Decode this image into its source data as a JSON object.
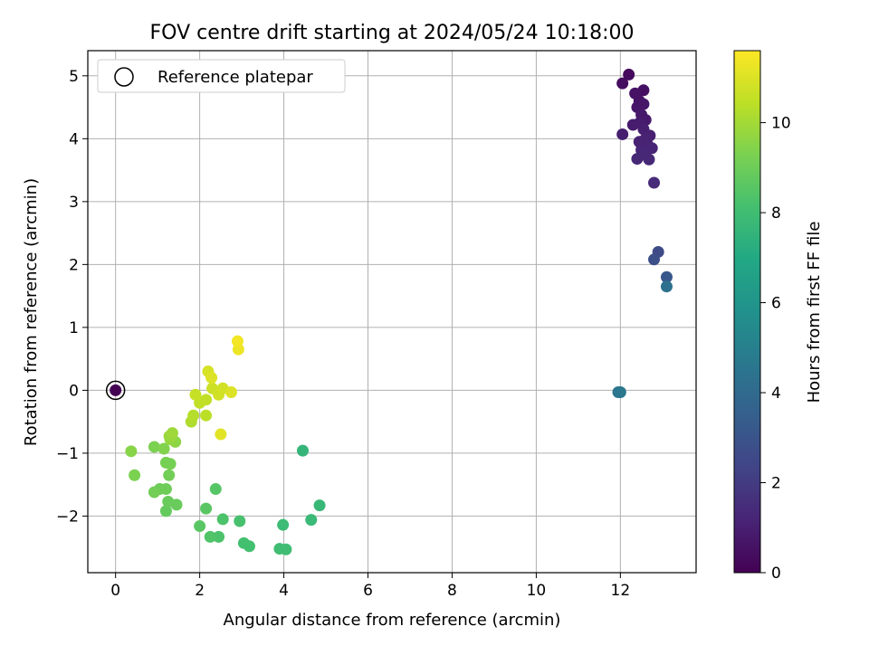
{
  "chart_data": {
    "type": "scatter",
    "title": "FOV centre drift starting at 2024/05/24 10:18:00",
    "xlabel": "Angular distance from reference (arcmin)",
    "ylabel": "Rotation from reference (arcmin)",
    "xlim": [
      -0.66,
      13.8
    ],
    "ylim": [
      -2.9,
      5.4
    ],
    "xticks": [
      0,
      2,
      4,
      6,
      8,
      10,
      12
    ],
    "yticks": [
      -2,
      -1,
      0,
      1,
      2,
      3,
      4,
      5
    ],
    "grid": true,
    "legend": {
      "placement": "top-left",
      "entries": [
        "Reference platepar"
      ]
    },
    "colorbar": {
      "label": "Hours from first FF file",
      "min": 0,
      "max": 11.6,
      "ticks": [
        0,
        2,
        4,
        6,
        8,
        10
      ],
      "colormap": "viridis"
    },
    "reference_point": {
      "x": 0,
      "y": 0,
      "label": "Reference platepar"
    },
    "points": [
      {
        "x": 0.0,
        "y": 0.0,
        "c": 0.0
      },
      {
        "x": 12.2,
        "y": 5.02,
        "c": 0.3
      },
      {
        "x": 12.05,
        "y": 4.88,
        "c": 0.4
      },
      {
        "x": 12.55,
        "y": 4.77,
        "c": 0.5
      },
      {
        "x": 12.35,
        "y": 4.72,
        "c": 0.6
      },
      {
        "x": 12.45,
        "y": 4.6,
        "c": 0.6
      },
      {
        "x": 12.55,
        "y": 4.55,
        "c": 0.7
      },
      {
        "x": 12.4,
        "y": 4.5,
        "c": 0.7
      },
      {
        "x": 12.5,
        "y": 4.38,
        "c": 0.8
      },
      {
        "x": 12.6,
        "y": 4.3,
        "c": 0.8
      },
      {
        "x": 12.3,
        "y": 4.22,
        "c": 0.9
      },
      {
        "x": 12.45,
        "y": 4.25,
        "c": 0.9
      },
      {
        "x": 12.55,
        "y": 4.15,
        "c": 1.0
      },
      {
        "x": 12.05,
        "y": 4.07,
        "c": 1.0
      },
      {
        "x": 12.7,
        "y": 4.05,
        "c": 1.0
      },
      {
        "x": 12.6,
        "y": 4.0,
        "c": 1.1
      },
      {
        "x": 12.45,
        "y": 3.95,
        "c": 1.1
      },
      {
        "x": 12.65,
        "y": 3.9,
        "c": 1.1
      },
      {
        "x": 12.75,
        "y": 3.85,
        "c": 1.2
      },
      {
        "x": 12.5,
        "y": 3.82,
        "c": 1.2
      },
      {
        "x": 12.6,
        "y": 3.8,
        "c": 1.2
      },
      {
        "x": 12.4,
        "y": 3.68,
        "c": 1.3
      },
      {
        "x": 12.68,
        "y": 3.67,
        "c": 1.3
      },
      {
        "x": 12.55,
        "y": 3.75,
        "c": 1.3
      },
      {
        "x": 12.8,
        "y": 3.3,
        "c": 1.4
      },
      {
        "x": 12.9,
        "y": 2.2,
        "c": 2.6
      },
      {
        "x": 12.8,
        "y": 2.08,
        "c": 2.8
      },
      {
        "x": 13.1,
        "y": 1.8,
        "c": 3.2
      },
      {
        "x": 13.1,
        "y": 1.65,
        "c": 4.3
      },
      {
        "x": 11.95,
        "y": -0.03,
        "c": 4.5
      },
      {
        "x": 12.0,
        "y": -0.03,
        "c": 4.6
      },
      {
        "x": 4.45,
        "y": -0.96,
        "c": 7.6
      },
      {
        "x": 4.85,
        "y": -1.83,
        "c": 7.7
      },
      {
        "x": 4.65,
        "y": -2.06,
        "c": 7.8
      },
      {
        "x": 3.98,
        "y": -2.14,
        "c": 7.9
      },
      {
        "x": 3.9,
        "y": -2.52,
        "c": 8.0
      },
      {
        "x": 4.05,
        "y": -2.53,
        "c": 8.0
      },
      {
        "x": 3.05,
        "y": -2.43,
        "c": 8.1
      },
      {
        "x": 3.18,
        "y": -2.48,
        "c": 8.1
      },
      {
        "x": 2.95,
        "y": -2.08,
        "c": 8.2
      },
      {
        "x": 2.55,
        "y": -2.05,
        "c": 8.3
      },
      {
        "x": 2.45,
        "y": -2.33,
        "c": 8.3
      },
      {
        "x": 2.25,
        "y": -2.33,
        "c": 8.4
      },
      {
        "x": 2.38,
        "y": -1.57,
        "c": 8.5
      },
      {
        "x": 2.15,
        "y": -1.88,
        "c": 8.6
      },
      {
        "x": 2.0,
        "y": -2.16,
        "c": 8.6
      },
      {
        "x": 1.2,
        "y": -1.92,
        "c": 8.8
      },
      {
        "x": 1.25,
        "y": -1.77,
        "c": 8.9
      },
      {
        "x": 1.45,
        "y": -1.82,
        "c": 8.9
      },
      {
        "x": 1.2,
        "y": -1.57,
        "c": 9.0
      },
      {
        "x": 1.05,
        "y": -1.57,
        "c": 9.0
      },
      {
        "x": 0.92,
        "y": -1.62,
        "c": 9.1
      },
      {
        "x": 1.27,
        "y": -1.35,
        "c": 9.1
      },
      {
        "x": 1.2,
        "y": -1.15,
        "c": 9.2
      },
      {
        "x": 1.3,
        "y": -1.17,
        "c": 9.2
      },
      {
        "x": 0.45,
        "y": -1.35,
        "c": 9.3
      },
      {
        "x": 0.92,
        "y": -0.9,
        "c": 9.3
      },
      {
        "x": 1.15,
        "y": -0.93,
        "c": 9.4
      },
      {
        "x": 0.37,
        "y": -0.97,
        "c": 9.5
      },
      {
        "x": 1.42,
        "y": -0.82,
        "c": 9.6
      },
      {
        "x": 1.3,
        "y": -0.78,
        "c": 9.7
      },
      {
        "x": 1.28,
        "y": -0.73,
        "c": 9.8
      },
      {
        "x": 1.35,
        "y": -0.68,
        "c": 9.9
      },
      {
        "x": 1.8,
        "y": -0.5,
        "c": 10.2
      },
      {
        "x": 1.85,
        "y": -0.4,
        "c": 10.3
      },
      {
        "x": 2.15,
        "y": -0.4,
        "c": 10.4
      },
      {
        "x": 2.0,
        "y": -0.2,
        "c": 10.5
      },
      {
        "x": 2.15,
        "y": -0.15,
        "c": 10.5
      },
      {
        "x": 1.9,
        "y": -0.07,
        "c": 10.6
      },
      {
        "x": 2.3,
        "y": 0.03,
        "c": 10.7
      },
      {
        "x": 2.45,
        "y": -0.07,
        "c": 10.8
      },
      {
        "x": 2.55,
        "y": 0.03,
        "c": 10.8
      },
      {
        "x": 2.2,
        "y": 0.3,
        "c": 10.9
      },
      {
        "x": 2.28,
        "y": 0.2,
        "c": 11.0
      },
      {
        "x": 2.75,
        "y": -0.03,
        "c": 11.0
      },
      {
        "x": 2.5,
        "y": -0.7,
        "c": 11.1
      },
      {
        "x": 2.92,
        "y": 0.65,
        "c": 11.3
      },
      {
        "x": 2.9,
        "y": 0.78,
        "c": 11.4
      }
    ]
  }
}
